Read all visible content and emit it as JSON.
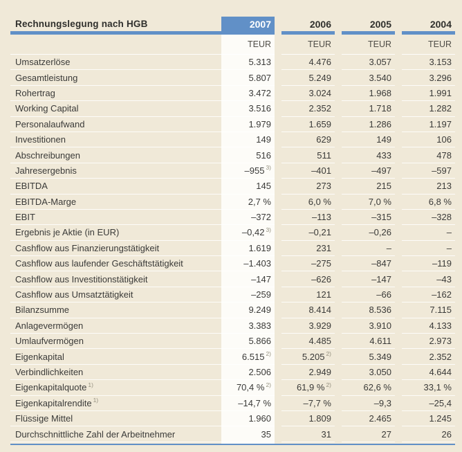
{
  "page": {
    "background_color": "#f0e9d8"
  },
  "table": {
    "title": "Rechnungslegung nach HGB",
    "unit_label": "TEUR",
    "years": [
      "2007",
      "2006",
      "2005",
      "2004"
    ],
    "highlighted_year": "2007",
    "colors": {
      "accent_blue": "#6190c7",
      "highlight_column_bg": "#fdfcf8",
      "text": "#3a3a38",
      "footnote_marker": "#94907f"
    },
    "rows": [
      {
        "label": "Umsatzerlöse",
        "values": [
          {
            "t": "5.313"
          },
          {
            "t": "4.476"
          },
          {
            "t": "3.057"
          },
          {
            "t": "3.153"
          }
        ]
      },
      {
        "label": "Gesamtleistung",
        "values": [
          {
            "t": "5.807"
          },
          {
            "t": "5.249"
          },
          {
            "t": "3.540"
          },
          {
            "t": "3.296"
          }
        ]
      },
      {
        "label": "Rohertrag",
        "values": [
          {
            "t": "3.472"
          },
          {
            "t": "3.024"
          },
          {
            "t": "1.968"
          },
          {
            "t": "1.991"
          }
        ]
      },
      {
        "label": "Working Capital",
        "values": [
          {
            "t": "3.516"
          },
          {
            "t": "2.352"
          },
          {
            "t": "1.718"
          },
          {
            "t": "1.282"
          }
        ]
      },
      {
        "label": "Personalaufwand",
        "values": [
          {
            "t": "1.979"
          },
          {
            "t": "1.659"
          },
          {
            "t": "1.286"
          },
          {
            "t": "1.197"
          }
        ]
      },
      {
        "label": "Investitionen",
        "values": [
          {
            "t": "149"
          },
          {
            "t": "629"
          },
          {
            "t": "149"
          },
          {
            "t": "106"
          }
        ]
      },
      {
        "label": "Abschreibungen",
        "values": [
          {
            "t": "516"
          },
          {
            "t": "511"
          },
          {
            "t": "433"
          },
          {
            "t": "478"
          }
        ]
      },
      {
        "label": "Jahresergebnis",
        "values": [
          {
            "t": "–955",
            "s": "3)"
          },
          {
            "t": "–401"
          },
          {
            "t": "–497"
          },
          {
            "t": "–597"
          }
        ]
      },
      {
        "label": "EBITDA",
        "values": [
          {
            "t": "145"
          },
          {
            "t": "273"
          },
          {
            "t": "215"
          },
          {
            "t": "213"
          }
        ]
      },
      {
        "label": "EBITDA-Marge",
        "values": [
          {
            "t": "2,7 %"
          },
          {
            "t": "6,0 %"
          },
          {
            "t": "7,0 %"
          },
          {
            "t": "6,8 %"
          }
        ]
      },
      {
        "label": "EBIT",
        "values": [
          {
            "t": "–372"
          },
          {
            "t": "–113"
          },
          {
            "t": "–315"
          },
          {
            "t": "–328"
          }
        ]
      },
      {
        "label": "Ergebnis je Aktie (in EUR)",
        "values": [
          {
            "t": "–0,42",
            "s": "3)"
          },
          {
            "t": "–0,21"
          },
          {
            "t": "–0,26"
          },
          {
            "t": "–"
          }
        ]
      },
      {
        "label": "Cashflow aus Finanzierungstätigkeit",
        "values": [
          {
            "t": "1.619"
          },
          {
            "t": "231"
          },
          {
            "t": "–"
          },
          {
            "t": "–"
          }
        ]
      },
      {
        "label": "Cashflow aus laufender Geschäftstätigkeit",
        "values": [
          {
            "t": "–1.403"
          },
          {
            "t": "–275"
          },
          {
            "t": "–847"
          },
          {
            "t": "–119"
          }
        ]
      },
      {
        "label": "Cashflow aus Investitionstätigkeit",
        "values": [
          {
            "t": "–147"
          },
          {
            "t": "–626"
          },
          {
            "t": "–147"
          },
          {
            "t": "–43"
          }
        ]
      },
      {
        "label": "Cashflow aus Umsatztätigkeit",
        "values": [
          {
            "t": "–259"
          },
          {
            "t": "121"
          },
          {
            "t": "–66"
          },
          {
            "t": "–162"
          }
        ]
      },
      {
        "label": "Bilanzsumme",
        "values": [
          {
            "t": "9.249"
          },
          {
            "t": "8.414"
          },
          {
            "t": "8.536"
          },
          {
            "t": "7.115"
          }
        ]
      },
      {
        "label": "Anlagevermögen",
        "values": [
          {
            "t": "3.383"
          },
          {
            "t": "3.929"
          },
          {
            "t": "3.910"
          },
          {
            "t": "4.133"
          }
        ]
      },
      {
        "label": "Umlaufvermögen",
        "values": [
          {
            "t": "5.866"
          },
          {
            "t": "4.485"
          },
          {
            "t": "4.611"
          },
          {
            "t": "2.973"
          }
        ]
      },
      {
        "label": "Eigenkapital",
        "values": [
          {
            "t": "6.515",
            "s": "2)"
          },
          {
            "t": "5.205",
            "s": "2)"
          },
          {
            "t": "5.349"
          },
          {
            "t": "2.352"
          }
        ]
      },
      {
        "label": "Verbindlichkeiten",
        "values": [
          {
            "t": "2.506"
          },
          {
            "t": "2.949"
          },
          {
            "t": "3.050"
          },
          {
            "t": "4.644"
          }
        ]
      },
      {
        "label": "Eigenkapitalquote",
        "label_sup": "1)",
        "values": [
          {
            "t": "70,4 %",
            "s": "2)"
          },
          {
            "t": "61,9 %",
            "s": "2)"
          },
          {
            "t": "62,6 %"
          },
          {
            "t": "33,1 %"
          }
        ]
      },
      {
        "label": "Eigenkapitalrendite",
        "label_sup": "1)",
        "values": [
          {
            "t": "–14,7 %"
          },
          {
            "t": "–7,7 %"
          },
          {
            "t": "–9,3"
          },
          {
            "t": "–25,4"
          }
        ]
      },
      {
        "label": "Flüssige Mittel",
        "values": [
          {
            "t": "1.960"
          },
          {
            "t": "1.809"
          },
          {
            "t": "2.465"
          },
          {
            "t": "1.245"
          }
        ]
      },
      {
        "label": "Durchschnittliche Zahl der Arbeitnehmer",
        "values": [
          {
            "t": "35"
          },
          {
            "t": "31"
          },
          {
            "t": "27"
          },
          {
            "t": "26"
          }
        ]
      }
    ]
  }
}
